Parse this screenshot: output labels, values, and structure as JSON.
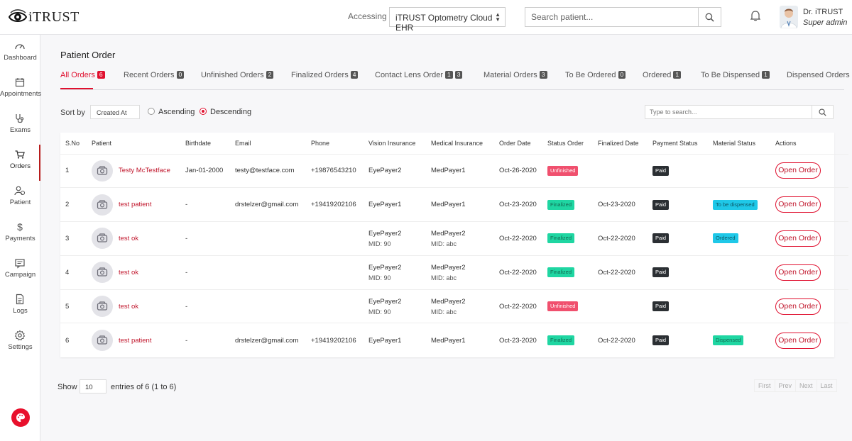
{
  "header": {
    "logo_text": "iTRUST",
    "accessing_label": "Accessing",
    "practice": "iTRUST Optometry Cloud EHR",
    "search_placeholder": "Search patient...",
    "user_name": "Dr. iTRUST",
    "user_role": "Super admin"
  },
  "sidebar": {
    "items": [
      {
        "label": "Dashboard",
        "icon": "dashboard-icon"
      },
      {
        "label": "Appointments",
        "icon": "calendar-icon"
      },
      {
        "label": "Exams",
        "icon": "stethoscope-icon"
      },
      {
        "label": "Orders",
        "icon": "cart-icon",
        "active": true
      },
      {
        "label": "Patient",
        "icon": "patient-icon"
      },
      {
        "label": "Payments",
        "icon": "dollar-icon"
      },
      {
        "label": "Campaign",
        "icon": "campaign-icon"
      },
      {
        "label": "Logs",
        "icon": "logs-icon"
      },
      {
        "label": "Settings",
        "icon": "gear-icon"
      }
    ]
  },
  "page": {
    "title": "Patient Order"
  },
  "tabs": [
    {
      "label": "All Orders",
      "badges": [
        "6"
      ]
    },
    {
      "label": "Recent Orders",
      "badges": [
        "0"
      ]
    },
    {
      "label": "Unfinished Orders",
      "badges": [
        "2"
      ]
    },
    {
      "label": "Finalized Orders",
      "badges": [
        "4"
      ]
    },
    {
      "label": "Contact Lens Order",
      "badges": [
        "1",
        "3"
      ]
    },
    {
      "label": "Material Orders",
      "badges": [
        "3"
      ]
    },
    {
      "label": "To Be Ordered",
      "badges": [
        "0"
      ]
    },
    {
      "label": "Ordered",
      "badges": [
        "1"
      ]
    },
    {
      "label": "To Be Dispensed",
      "badges": [
        "1"
      ]
    },
    {
      "label": "Dispensed Orders",
      "badges": []
    }
  ],
  "sort": {
    "label": "Sort by",
    "field": "Created At",
    "ascending": "Ascending",
    "descending": "Descending",
    "selected": "Descending"
  },
  "table_search_placeholder": "Type to search...",
  "table": {
    "columns": [
      "S.No",
      "Patient",
      "Birthdate",
      "Email",
      "Phone",
      "Vision Insurance",
      "Medical Insurance",
      "Order Date",
      "Status Order",
      "Finalized Date",
      "Payment Status",
      "Material Status",
      "Actions"
    ],
    "rows": [
      {
        "sno": "1",
        "patient": "Testy McTestface",
        "birthdate": "Jan-01-2000",
        "email": "testy@testface.com",
        "phone": "+19876543210",
        "vision": "EyePayer2",
        "vision_sub": "",
        "medical": "MedPayer1",
        "medical_sub": "",
        "order_date": "Oct-26-2020",
        "status": "Unfinished",
        "finalized_date": "",
        "payment": "Paid",
        "material": "",
        "action": "Open Order"
      },
      {
        "sno": "2",
        "patient": "test patient",
        "birthdate": "-",
        "email": "drstelzer@gmail.com",
        "phone": "+19419202106",
        "vision": "EyePayer1",
        "vision_sub": "",
        "medical": "MedPayer1",
        "medical_sub": "",
        "order_date": "Oct-23-2020",
        "status": "Finalized",
        "finalized_date": "Oct-23-2020",
        "payment": "Paid",
        "material": "To be dispensed",
        "action": "Open Order"
      },
      {
        "sno": "3",
        "patient": "test ok",
        "birthdate": "-",
        "email": "",
        "phone": "",
        "vision": "EyePayer2",
        "vision_sub": "MID: 90",
        "medical": "MedPayer2",
        "medical_sub": "MID: abc",
        "order_date": "Oct-22-2020",
        "status": "Finalized",
        "finalized_date": "Oct-22-2020",
        "payment": "Paid",
        "material": "Ordered",
        "action": "Open Order"
      },
      {
        "sno": "4",
        "patient": "test ok",
        "birthdate": "-",
        "email": "",
        "phone": "",
        "vision": "EyePayer2",
        "vision_sub": "MID: 90",
        "medical": "MedPayer2",
        "medical_sub": "MID: abc",
        "order_date": "Oct-22-2020",
        "status": "Finalized",
        "finalized_date": "Oct-22-2020",
        "payment": "Paid",
        "material": "",
        "action": "Open Order"
      },
      {
        "sno": "5",
        "patient": "test ok",
        "birthdate": "-",
        "email": "",
        "phone": "",
        "vision": "EyePayer2",
        "vision_sub": "MID: 90",
        "medical": "MedPayer2",
        "medical_sub": "MID: abc",
        "order_date": "Oct-22-2020",
        "status": "Unfinished",
        "finalized_date": "",
        "payment": "Paid",
        "material": "",
        "action": "Open Order"
      },
      {
        "sno": "6",
        "patient": "test patient",
        "birthdate": "-",
        "email": "drstelzer@gmail.com",
        "phone": "+19419202106",
        "vision": "EyePayer1",
        "vision_sub": "",
        "medical": "MedPayer1",
        "medical_sub": "",
        "order_date": "Oct-23-2020",
        "status": "Finalized",
        "finalized_date": "Oct-22-2020",
        "payment": "Paid",
        "material": "Dispensed",
        "action": "Open Order"
      }
    ]
  },
  "footer": {
    "show_label": "Show",
    "entries_value": "10",
    "entries_text": "entries of 6 (1 to 6)",
    "pager": [
      "First",
      "Prev",
      "Next",
      "Last"
    ]
  },
  "colors": {
    "accent": "#e0102f",
    "unfinished": "#f0506e",
    "finalized": "#1fd6a2",
    "paid": "#2b2f33",
    "material_blue": "#1fc8e8"
  }
}
